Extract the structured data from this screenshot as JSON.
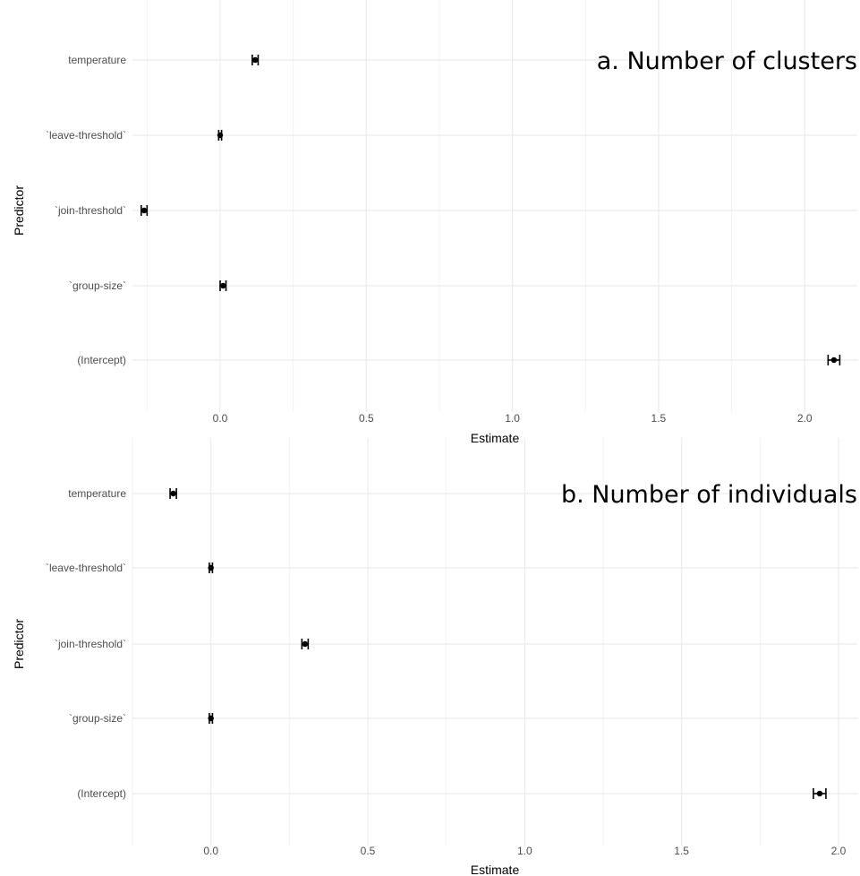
{
  "chart_data": [
    {
      "type": "scatter",
      "title": "a. Number of clusters",
      "xlabel": "Estimate",
      "ylabel": "Predictor",
      "categories": [
        "temperature",
        "`leave-threshold`",
        "`join-threshold`",
        "`group-size`",
        "(Intercept)"
      ],
      "x_ticks": [
        "0.0",
        "0.5",
        "1.0",
        "1.5",
        "2.0"
      ],
      "xlim": [
        -0.3,
        2.18
      ],
      "grid": true,
      "series": [
        {
          "values": [
            0.12,
            0.0,
            -0.26,
            0.01,
            2.1
          ],
          "ci_low": [
            0.11,
            -0.005,
            -0.27,
            0.0,
            2.08
          ],
          "ci_high": [
            0.13,
            0.005,
            -0.25,
            0.02,
            2.12
          ]
        }
      ]
    },
    {
      "type": "scatter",
      "title": "b. Number of individuals",
      "xlabel": "Estimate",
      "ylabel": "Predictor",
      "categories": [
        "temperature",
        "`leave-threshold`",
        "`join-threshold`",
        "`group-size`",
        "(Intercept)"
      ],
      "x_ticks": [
        "0.0",
        "0.5",
        "1.0",
        "1.5",
        "2.0"
      ],
      "xlim": [
        -0.25,
        2.06
      ],
      "grid": true,
      "series": [
        {
          "values": [
            -0.12,
            0.0,
            0.3,
            0.0,
            1.94
          ],
          "ci_low": [
            -0.13,
            -0.005,
            0.29,
            -0.005,
            1.92
          ],
          "ci_high": [
            -0.11,
            0.005,
            0.31,
            0.005,
            1.96
          ]
        }
      ]
    }
  ],
  "colors": {
    "points": "#000000",
    "grid": "#ebebeb",
    "text": "#4d4d4d",
    "title": "#000000"
  }
}
